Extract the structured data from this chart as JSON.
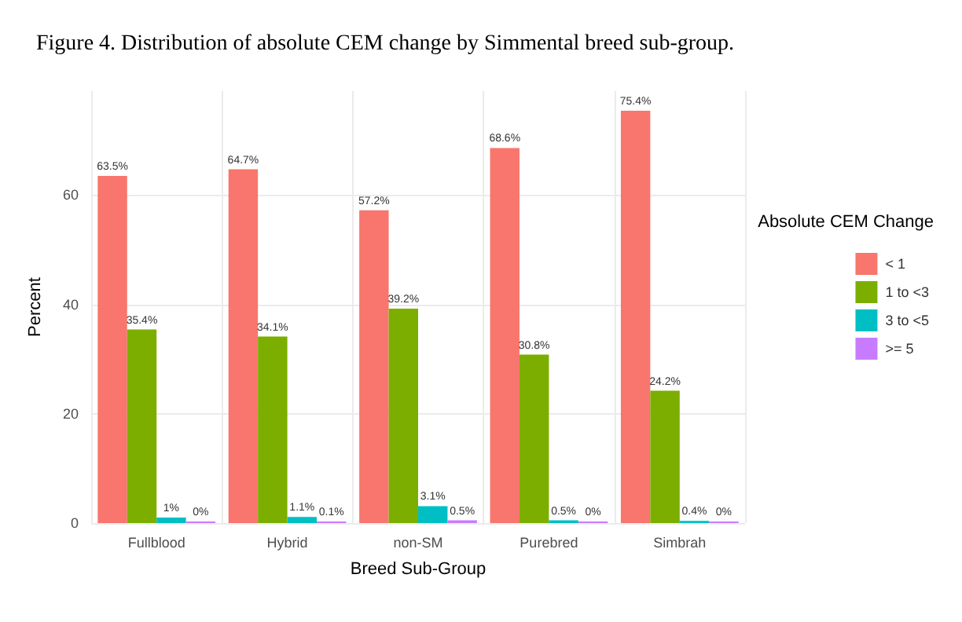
{
  "chart_data": {
    "type": "bar",
    "title": "Figure 4. Distribution of absolute CEM change by Simmental breed sub-group.",
    "xlabel": "Breed Sub-Group",
    "ylabel": "Percent",
    "legend_title": "Absolute CEM Change",
    "categories": [
      "Fullblood",
      "Hybrid",
      "non-SM",
      "Purebred",
      "Simbrah"
    ],
    "series": [
      {
        "name": "< 1",
        "color": "#f8766d",
        "values": [
          63.5,
          64.7,
          57.2,
          68.6,
          75.4
        ],
        "value_labels": [
          "63.5%",
          "64.7%",
          "57.2%",
          "68.6%",
          "75.4%"
        ]
      },
      {
        "name": "1 to <3",
        "color": "#7cae00",
        "values": [
          35.4,
          34.1,
          39.2,
          30.8,
          24.2
        ],
        "value_labels": [
          "35.4%",
          "34.1%",
          "39.2%",
          "30.8%",
          "24.2%"
        ]
      },
      {
        "name": "3 to <5",
        "color": "#00bfc4",
        "values": [
          1,
          1.1,
          3.1,
          0.5,
          0.4
        ],
        "value_labels": [
          "1%",
          "1.1%",
          "3.1%",
          "0.5%",
          "0.4%"
        ]
      },
      {
        "name": ">= 5",
        "color": "#c77cff",
        "values": [
          0,
          0.1,
          0.5,
          0,
          0
        ],
        "value_labels": [
          "0%",
          "0.1%",
          "0.5%",
          "0%",
          "0%"
        ]
      }
    ],
    "ylim": [
      0,
      79
    ],
    "yticks": [
      0,
      20,
      40,
      60
    ],
    "grid": true,
    "legend": "right"
  }
}
